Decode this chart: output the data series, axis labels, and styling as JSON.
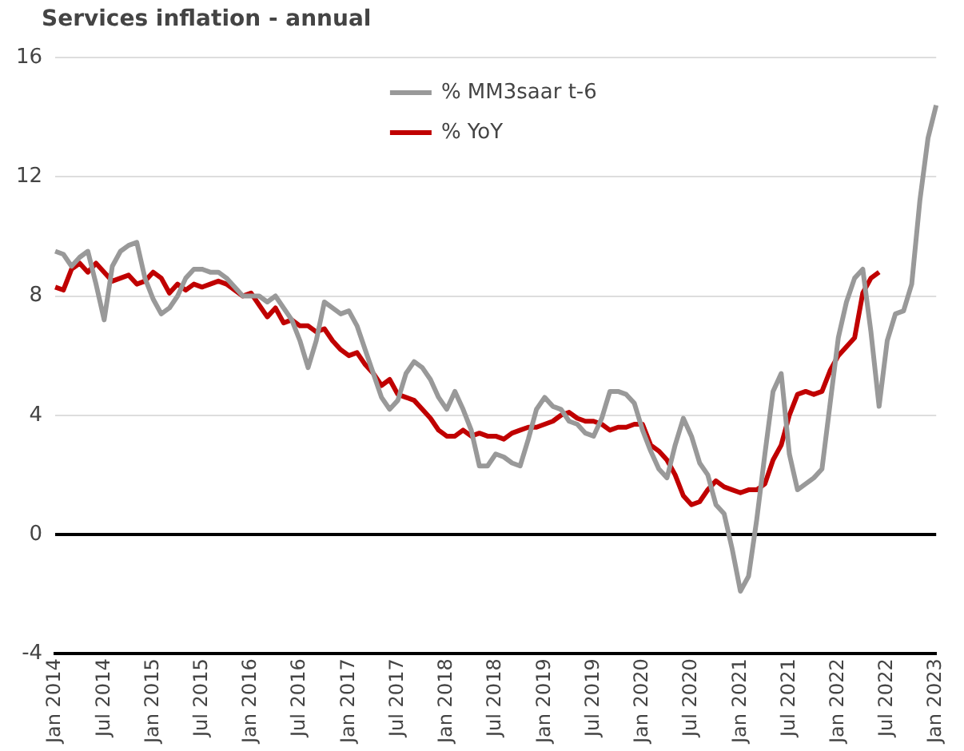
{
  "chart_data": {
    "type": "line",
    "title": "Services inflation - annual",
    "categories": [
      "Jan 2014",
      null,
      null,
      null,
      null,
      null,
      "Jul 2014",
      null,
      null,
      null,
      null,
      null,
      "Jan 2015",
      null,
      null,
      null,
      null,
      null,
      "Jul 2015",
      null,
      null,
      null,
      null,
      null,
      "Jan 2016",
      null,
      null,
      null,
      null,
      null,
      "Jul 2016",
      null,
      null,
      null,
      null,
      null,
      "Jan 2017",
      null,
      null,
      null,
      null,
      null,
      "Jul 2017",
      null,
      null,
      null,
      null,
      null,
      "Jan 2018",
      null,
      null,
      null,
      null,
      null,
      "Jul 2018",
      null,
      null,
      null,
      null,
      null,
      "Jan 2019",
      null,
      null,
      null,
      null,
      null,
      "Jul 2019",
      null,
      null,
      null,
      null,
      null,
      "Jan 2020",
      null,
      null,
      null,
      null,
      null,
      "Jul 2020",
      null,
      null,
      null,
      null,
      null,
      "Jan 2021",
      null,
      null,
      null,
      null,
      null,
      "Jul 2021",
      null,
      null,
      null,
      null,
      null,
      "Jan 2022",
      null,
      null,
      null,
      null,
      null,
      "Jul 2022",
      null,
      null,
      null,
      null,
      null,
      "Jan 2023"
    ],
    "series": [
      {
        "name": "% MM3saar t-6",
        "color": "#999999",
        "values": [
          9.5,
          9.4,
          9.0,
          9.3,
          9.5,
          8.4,
          7.2,
          9.0,
          9.5,
          9.7,
          9.8,
          8.6,
          7.9,
          7.4,
          7.6,
          8.0,
          8.6,
          8.9,
          8.9,
          8.8,
          8.8,
          8.6,
          8.3,
          8.0,
          8.0,
          8.0,
          7.8,
          8.0,
          7.6,
          7.2,
          6.5,
          5.6,
          6.5,
          7.8,
          7.6,
          7.4,
          7.5,
          7.0,
          6.2,
          5.4,
          4.6,
          4.2,
          4.5,
          5.4,
          5.8,
          5.6,
          5.2,
          4.6,
          4.2,
          4.8,
          4.2,
          3.5,
          2.3,
          2.3,
          2.7,
          2.6,
          2.4,
          2.3,
          3.2,
          4.2,
          4.6,
          4.3,
          4.2,
          3.8,
          3.7,
          3.4,
          3.3,
          3.9,
          4.8,
          4.8,
          4.7,
          4.4,
          3.5,
          2.8,
          2.2,
          1.9,
          3.0,
          3.9,
          3.3,
          2.4,
          2.0,
          1.0,
          0.7,
          -0.5,
          -1.9,
          -1.4,
          0.5,
          2.7,
          4.8,
          5.4,
          2.7,
          1.5,
          1.7,
          1.9,
          2.2,
          4.4,
          6.6,
          7.8,
          8.6,
          8.9,
          6.8,
          4.3,
          6.5,
          7.4,
          7.5,
          8.4,
          11.2,
          13.3,
          14.4
        ]
      },
      {
        "name": "% YoY",
        "color": "#c00000",
        "values": [
          8.3,
          8.2,
          8.9,
          9.1,
          8.8,
          9.1,
          8.8,
          8.5,
          8.6,
          8.7,
          8.4,
          8.5,
          8.8,
          8.6,
          8.1,
          8.4,
          8.2,
          8.4,
          8.3,
          8.4,
          8.5,
          8.4,
          8.2,
          8.0,
          8.1,
          7.7,
          7.3,
          7.6,
          7.1,
          7.2,
          7.0,
          7.0,
          6.8,
          6.9,
          6.5,
          6.2,
          6.0,
          6.1,
          5.7,
          5.4,
          5.0,
          5.2,
          4.7,
          4.6,
          4.5,
          4.2,
          3.9,
          3.5,
          3.3,
          3.3,
          3.5,
          3.3,
          3.4,
          3.3,
          3.3,
          3.2,
          3.4,
          3.5,
          3.6,
          3.6,
          3.7,
          3.8,
          4.0,
          4.1,
          3.9,
          3.8,
          3.8,
          3.7,
          3.5,
          3.6,
          3.6,
          3.7,
          3.7,
          3.0,
          2.8,
          2.5,
          2.0,
          1.3,
          1.0,
          1.1,
          1.5,
          1.8,
          1.6,
          1.5,
          1.4,
          1.5,
          1.5,
          1.7,
          2.5,
          3.0,
          4.0,
          4.7,
          4.8,
          4.7,
          4.8,
          5.5,
          6.0,
          6.3,
          6.6,
          8.1,
          8.6,
          8.8,
          null,
          null,
          null,
          null,
          null,
          null,
          null
        ]
      }
    ],
    "ylim": [
      -4,
      16
    ],
    "yticks": [
      -4,
      0,
      4,
      8,
      12,
      16
    ],
    "grid": "y",
    "legend": "top",
    "marker": "none",
    "line_style": "solid"
  }
}
